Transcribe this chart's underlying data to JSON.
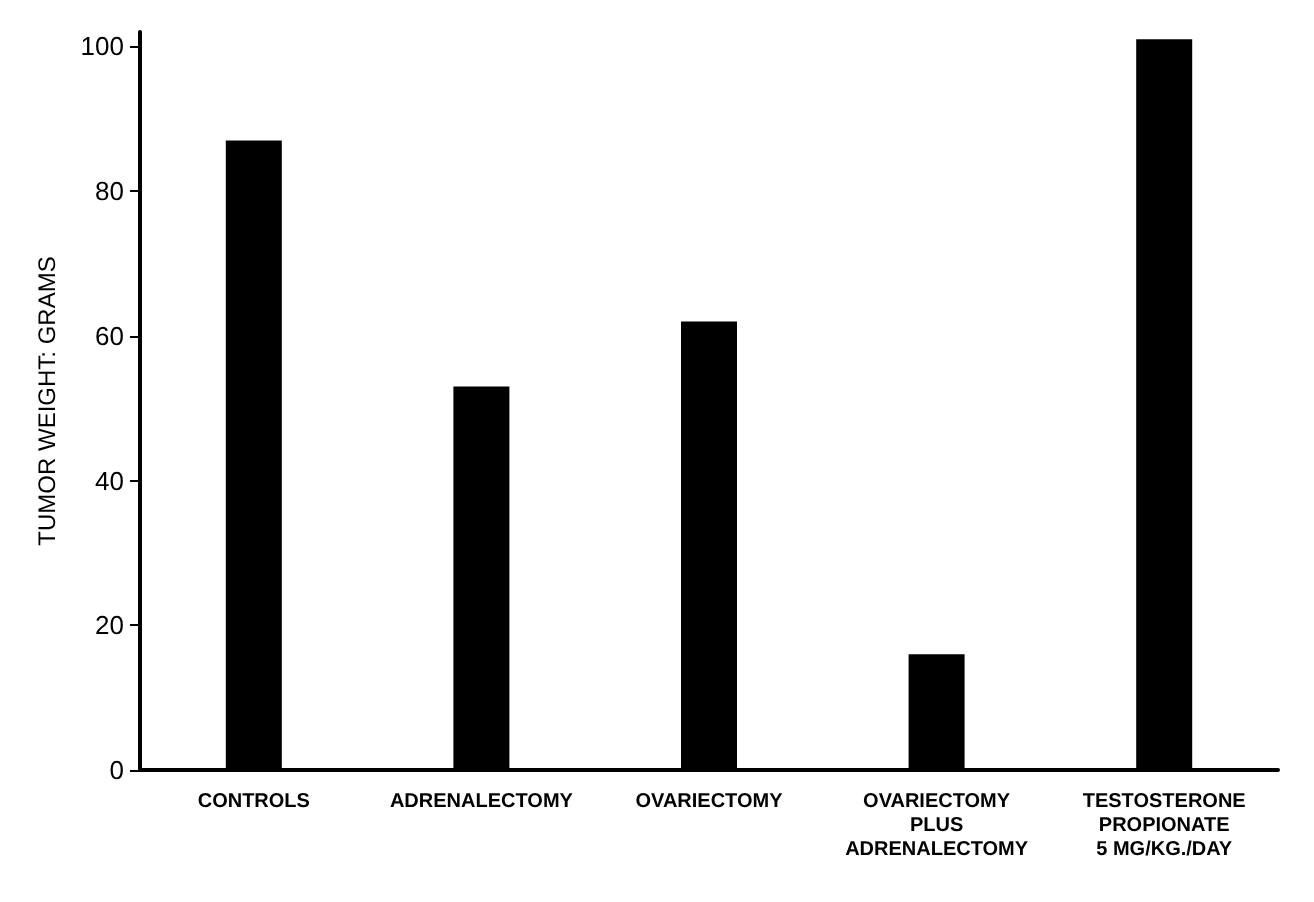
{
  "chart_data": {
    "type": "bar",
    "ylabel": "TUMOR WEIGHT: GRAMS",
    "categories": [
      "CONTROLS",
      "ADRENALECTOMY",
      "OVARIECTOMY",
      "OVARIECTOMY\nPLUS\nADRENALECTOMY",
      "TESTOSTERONE\nPROPIONATE\n5 MG/KG./DAY"
    ],
    "values": [
      87,
      53,
      62,
      16,
      101
    ],
    "color": "#000000",
    "ylim": [
      0,
      102
    ],
    "yticks": [
      0,
      20,
      40,
      60,
      80,
      100
    ],
    "grid": false
  }
}
